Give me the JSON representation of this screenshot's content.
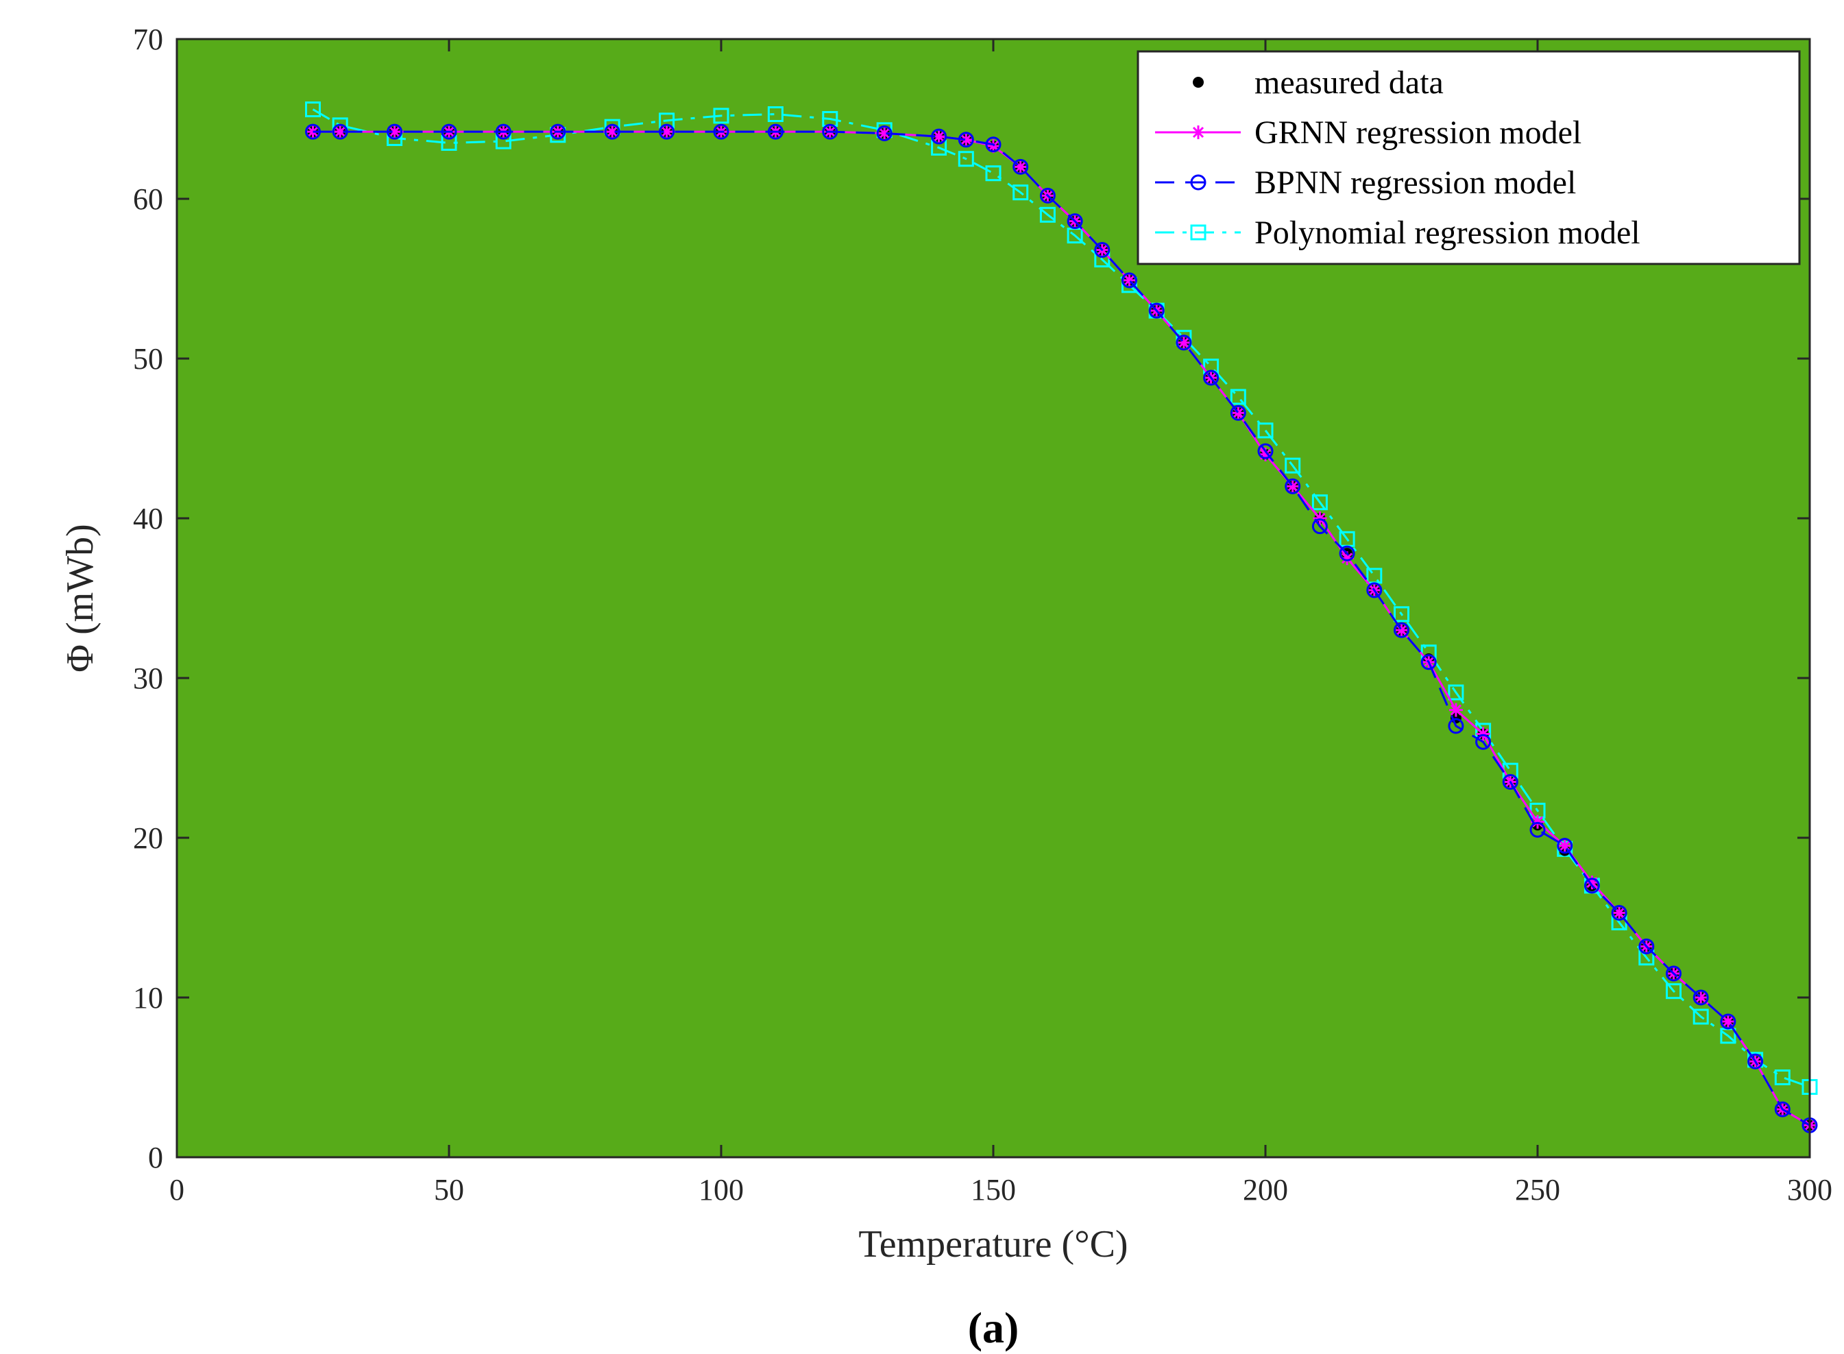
{
  "chart_data": {
    "type": "line",
    "title": "",
    "xlabel": "Temperature (°C)",
    "ylabel": "Φ (mWb)",
    "panel_label": "(a)",
    "xlim": [
      0,
      300
    ],
    "ylim": [
      0,
      70
    ],
    "xticks": [
      0,
      50,
      100,
      150,
      200,
      250,
      300
    ],
    "yticks": [
      0,
      10,
      20,
      30,
      40,
      50,
      60,
      70
    ],
    "grid": false,
    "legend_position": "top-right",
    "plot_background": "#57ab19",
    "x": [
      25,
      30,
      40,
      50,
      60,
      70,
      80,
      90,
      100,
      110,
      120,
      130,
      140,
      145,
      150,
      155,
      160,
      165,
      170,
      175,
      180,
      185,
      190,
      195,
      200,
      205,
      210,
      215,
      220,
      225,
      230,
      235,
      240,
      245,
      250,
      255,
      260,
      265,
      270,
      275,
      280,
      285,
      290,
      295,
      300
    ],
    "series": [
      {
        "name": "measured data",
        "color": "#000000",
        "marker": "dot",
        "values": [
          64.2,
          64.2,
          64.2,
          64.2,
          64.2,
          64.2,
          64.2,
          64.2,
          64.2,
          64.2,
          64.2,
          64.1,
          63.9,
          63.7,
          63.3,
          62.0,
          60.2,
          58.6,
          56.8,
          54.9,
          53.0,
          51.0,
          48.8,
          46.6,
          44.0,
          42.0,
          40.0,
          37.8,
          35.5,
          33.0,
          31.2,
          27.5,
          26.5,
          23.5,
          20.8,
          19.2,
          17.0,
          15.3,
          13.2,
          11.5,
          10.0,
          8.5,
          6.0,
          3.0,
          2.0
        ]
      },
      {
        "name": "GRNN regression model",
        "color": "#ff00ff",
        "marker": "asterisk",
        "values": [
          64.2,
          64.2,
          64.2,
          64.2,
          64.2,
          64.2,
          64.2,
          64.2,
          64.2,
          64.2,
          64.2,
          64.1,
          63.9,
          63.7,
          63.3,
          62.0,
          60.2,
          58.6,
          56.8,
          54.9,
          53.0,
          51.0,
          48.8,
          46.6,
          44.0,
          42.0,
          40.0,
          37.5,
          35.5,
          33.0,
          31.0,
          28.0,
          26.5,
          23.5,
          21.0,
          19.5,
          17.2,
          15.3,
          13.2,
          11.5,
          10.0,
          8.5,
          6.0,
          3.0,
          2.0
        ]
      },
      {
        "name": "BPNN regression model",
        "color": "#0000ff",
        "marker": "circle",
        "values": [
          64.2,
          64.2,
          64.2,
          64.2,
          64.2,
          64.2,
          64.2,
          64.2,
          64.2,
          64.2,
          64.2,
          64.1,
          63.9,
          63.7,
          63.4,
          62.0,
          60.2,
          58.6,
          56.8,
          54.9,
          53.0,
          51.0,
          48.8,
          46.6,
          44.2,
          42.0,
          39.5,
          37.8,
          35.5,
          33.0,
          31.0,
          27.0,
          26.0,
          23.5,
          20.5,
          19.5,
          17.0,
          15.3,
          13.2,
          11.5,
          10.0,
          8.5,
          6.0,
          3.0,
          2.0
        ]
      },
      {
        "name": "Polynomial regression model",
        "color": "#00ffff",
        "marker": "square",
        "values": [
          65.6,
          64.6,
          63.8,
          63.5,
          63.6,
          64.0,
          64.5,
          64.9,
          65.2,
          65.3,
          65.0,
          64.3,
          63.2,
          62.5,
          61.6,
          60.4,
          59.0,
          57.7,
          56.2,
          54.6,
          53.0,
          51.3,
          49.5,
          47.6,
          45.5,
          43.3,
          41.0,
          38.7,
          36.4,
          34.0,
          31.6,
          29.1,
          26.7,
          24.2,
          21.7,
          19.3,
          17.0,
          14.7,
          12.5,
          10.4,
          8.8,
          7.6,
          6.1,
          5.0,
          4.4
        ]
      }
    ]
  }
}
